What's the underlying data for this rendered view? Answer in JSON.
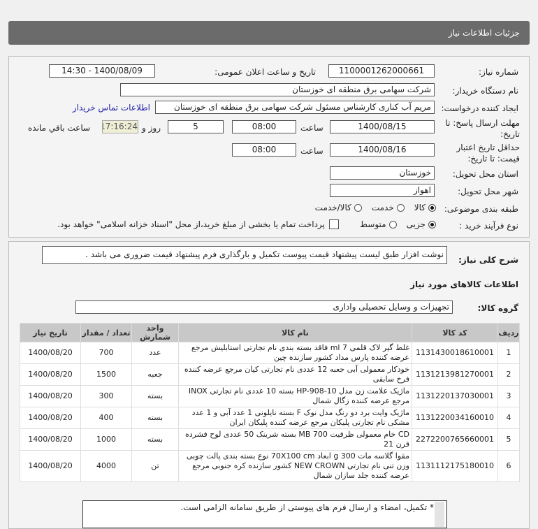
{
  "title": "جزئیات اطلاعات نیاز",
  "fields": {
    "need_number_label": "شماره نیاز:",
    "need_number": "1100001262000661",
    "announce_label": "تاریخ و ساعت اعلان عمومی:",
    "announce": "1400/08/09 - 14:30",
    "buyer_label": "نام دستگاه خریدار:",
    "buyer": "شرکت سهامی برق منطقه ای خوزستان",
    "creator_label": "ایجاد کننده درخواست:",
    "creator": "مریم آب کناری کارشناس مسئول شرکت سهامی برق منطقه ای خوزستان",
    "contact_link": "اطلاعات تماس خریدار",
    "deadline_label": "مهلت ارسال پاسخ: تا تاریخ:",
    "deadline_date": "1400/08/15",
    "time_label": "ساعت",
    "deadline_time": "08:00",
    "days": "5",
    "days_label": "روز و",
    "remaining": "17:16:24",
    "remaining_label": "ساعت باقي مانده",
    "validity_label": "حداقل تاریخ اعتبار قیمت: تا تاریخ:",
    "validity_date": "1400/08/16",
    "validity_time": "08:00",
    "province_label": "استان محل تحویل:",
    "province": "خوزستان",
    "city_label": "شهر محل تحویل:",
    "city": "اهواز",
    "category_label": "طبقه بندی موضوعی:",
    "category_options": [
      "کالا",
      "خدمت",
      "کالا/خدمت"
    ],
    "category_selected": "کالا",
    "process_label": "نوع فرآیند خرید :",
    "process_options": [
      "جزیی",
      "متوسط"
    ],
    "process_selected": "جزیی",
    "payment_note": "پرداخت تمام یا بخشی از مبلغ خرید،از محل \"اسناد خزانه اسلامی\" خواهد بود."
  },
  "description_label": "شرح کلی نیاز:",
  "description": "نوشت افزار  طبق لیست پیشنهاد قیمت پیوست تکمیل و بارگذاری فرم پیشنهاد قیمت ضروری می باشد .",
  "goods_heading": "اطلاعات کالاهای مورد نیاز",
  "group_label": "گروه کالا:",
  "group": "تجهیزات و وسایل تحصیلی واداری",
  "table": {
    "headers": [
      "ردیف",
      "کد کالا",
      "نام کالا",
      "واحد شمارش",
      "تعداد / مقدار",
      "تاریخ نیاز"
    ],
    "rows": [
      [
        "1",
        "1131430018610001",
        "غلط گیر لاک قلمی 7 ml فاقد بسته بندی نام تجارتی استابلیش مرجع عرضه کننده پارس مداد کشور سازنده چین",
        "عدد",
        "700",
        "1400/08/20"
      ],
      [
        "2",
        "1131213981270001",
        "خودکار معمولی آبی جعبه 12 عددی نام تجارتی کیان مرجع عرضه کننده فرخ سابقی",
        "جعبه",
        "1500",
        "1400/08/20"
      ],
      [
        "3",
        "1131220137030001",
        "ماژیک علامت زن مدل HP-908-10 بسته 10 عددی نام تجارتی INOX مرجع عرضه کننده زگال شمال",
        "بسته",
        "300",
        "1400/08/20"
      ],
      [
        "4",
        "1131220034160010",
        "ماژیک وایت برد دو رنگ مدل نوک F بسته نایلونی 1 عدد آبی و 1 عدد مشکی نام تجارتی پلیکان مرجع عرضه کننده پلیکان ایران",
        "بسته",
        "400",
        "1400/08/20"
      ],
      [
        "5",
        "2272200765660001",
        "CD خام معمولی ظرفیت 700 MB بسته شرینک 50 عددی لوح فشرده قرن 21",
        "بسته",
        "1000",
        "1400/08/20"
      ],
      [
        "6",
        "1131112175180010",
        "مقوا گلاسه مات 300 g ابعاد 70X100 cm نوع بسته بندی پالت چوبی وزن تنی نام تجارتی NEW CROWN کشور سازنده کره جنوبی مرجع عرضه کننده جلد سازان شمال",
        "تن",
        "4000",
        "1400/08/20"
      ]
    ]
  },
  "notes": "* تکمیل، امضاء و ارسال فرم های پیوستی از طریق سامانه الزامی است."
}
